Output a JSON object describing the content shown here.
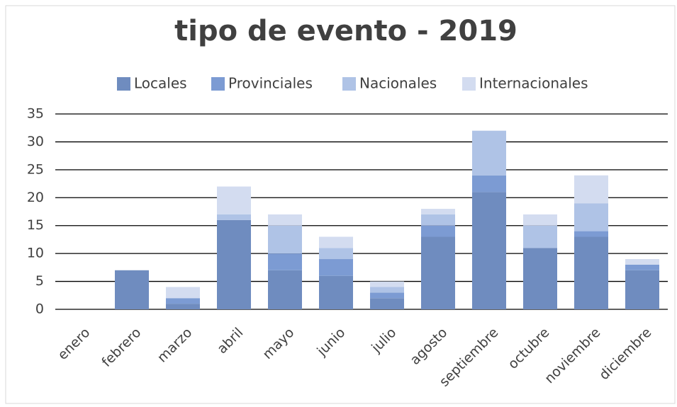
{
  "chart_data": {
    "type": "stacked_bar",
    "title": "tipo de evento - 2019",
    "categories": [
      "enero",
      "febrero",
      "marzo",
      "abril",
      "mayo",
      "junio",
      "julio",
      "agosto",
      "septiembre",
      "octubre",
      "noviembre",
      "diciembre"
    ],
    "series": [
      {
        "name": "Locales",
        "color": "#6f8cbf",
        "values": [
          0,
          7,
          1,
          16,
          7,
          6,
          2,
          13,
          21,
          11,
          13,
          7
        ]
      },
      {
        "name": "Provinciales",
        "color": "#7c9bd3",
        "values": [
          0,
          0,
          1,
          0,
          3,
          3,
          1,
          2,
          3,
          0,
          1,
          1
        ]
      },
      {
        "name": "Nacionales",
        "color": "#afc3e6",
        "values": [
          0,
          0,
          0,
          1,
          5,
          2,
          1,
          2,
          8,
          4,
          5,
          0
        ]
      },
      {
        "name": "Internacionales",
        "color": "#d3dcf0",
        "values": [
          0,
          0,
          2,
          5,
          2,
          2,
          1,
          1,
          0,
          2,
          5,
          1
        ]
      }
    ],
    "ylim": [
      0,
      35
    ],
    "yticks": [
      0,
      5,
      10,
      15,
      20,
      25,
      30,
      35
    ],
    "grid": true,
    "legend": "top"
  }
}
